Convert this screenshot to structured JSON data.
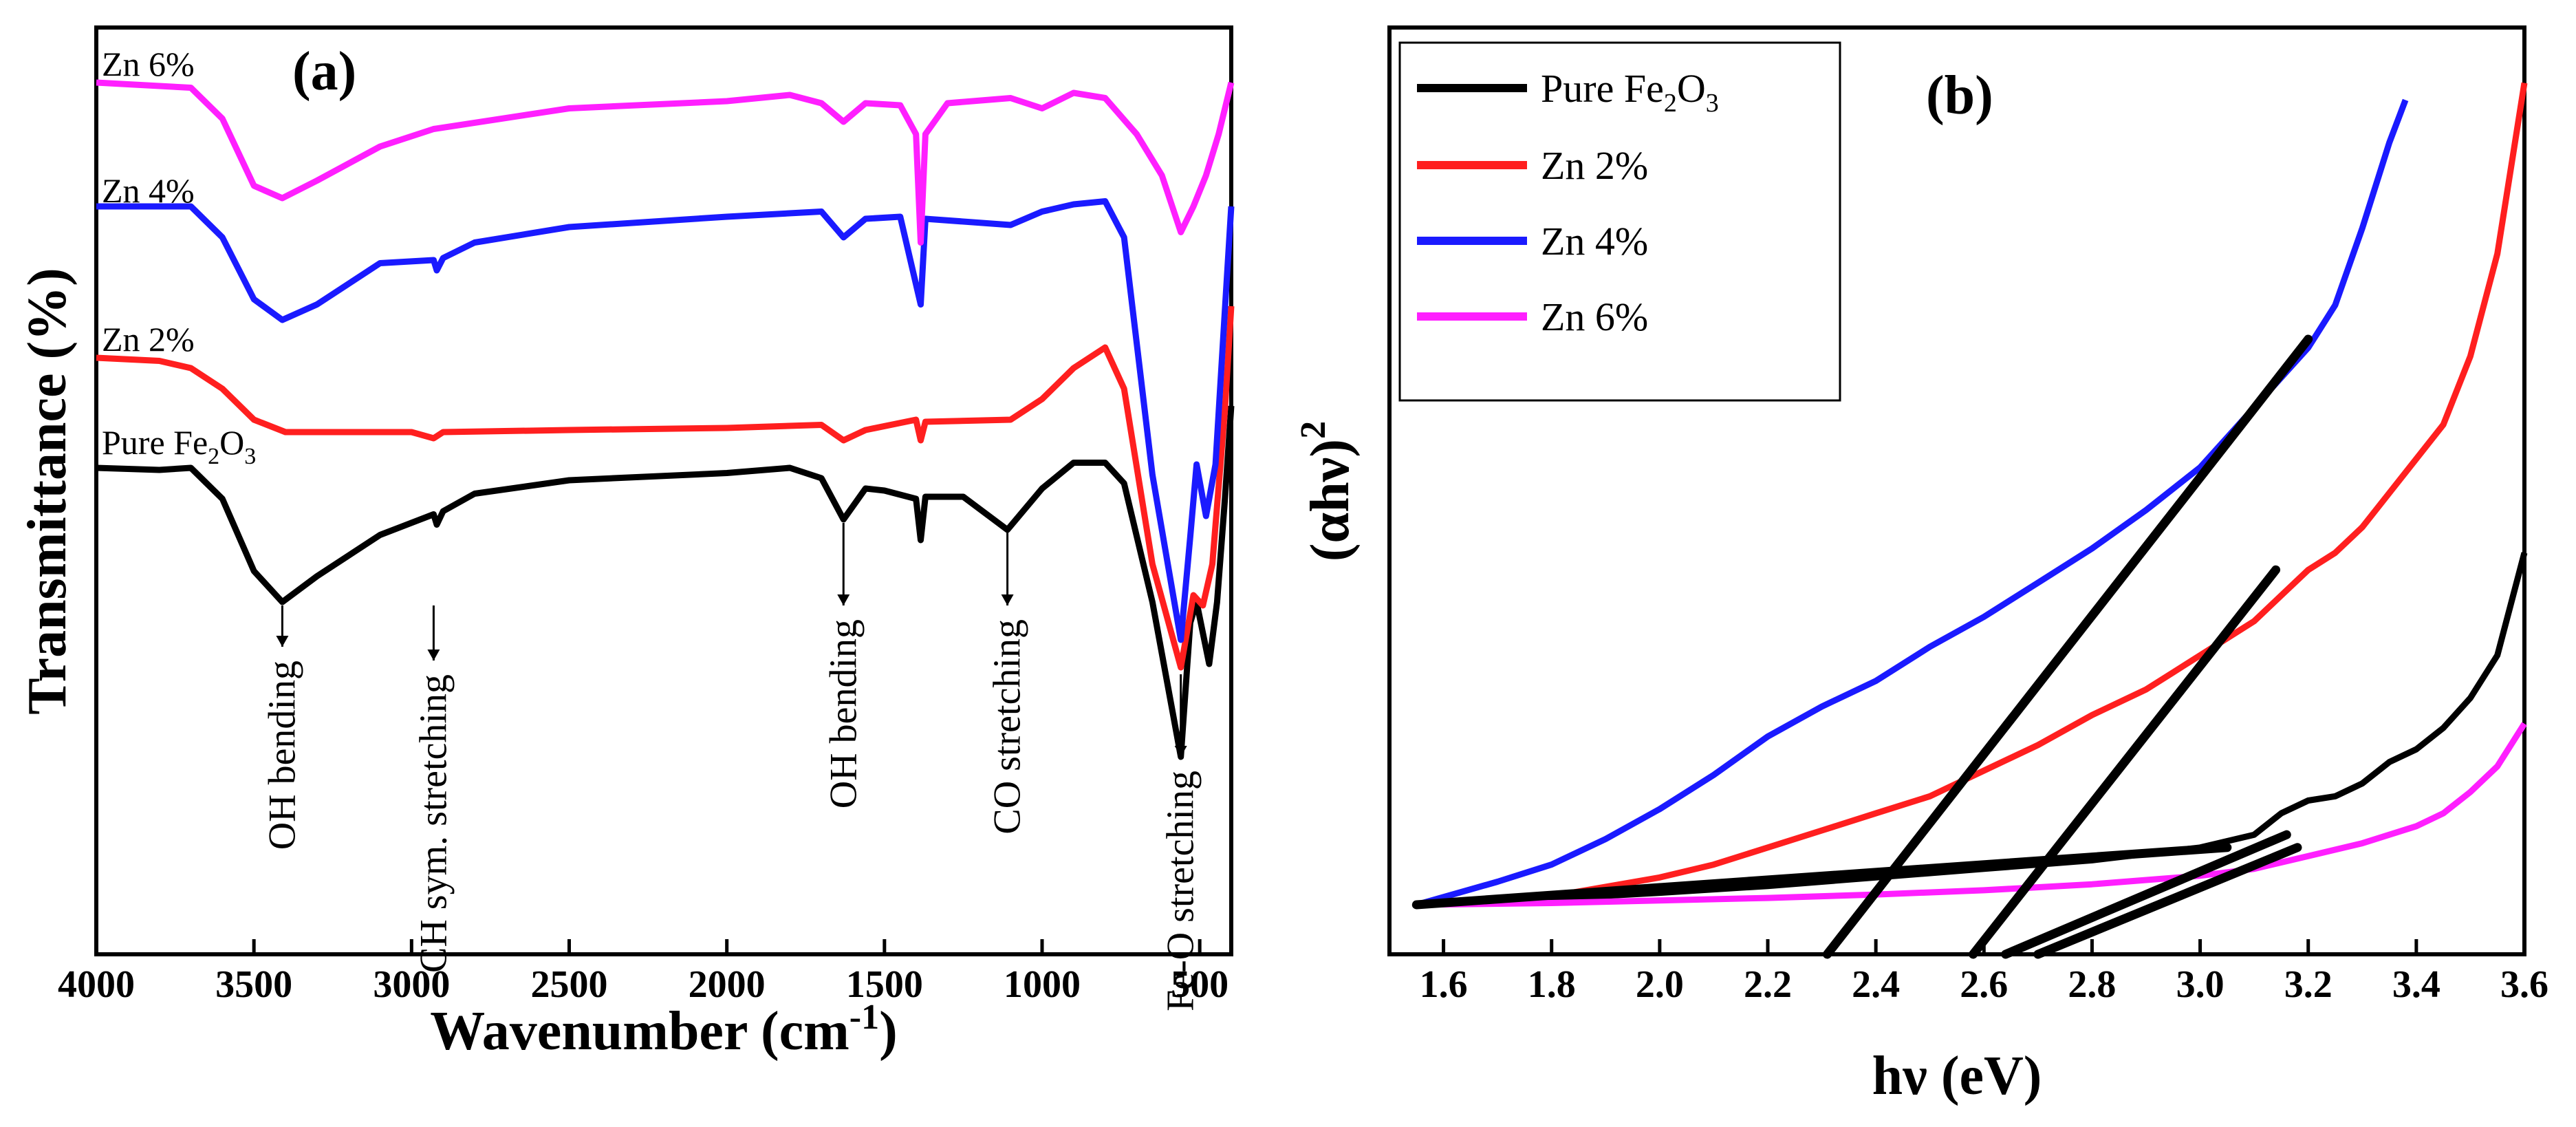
{
  "chart_data": [
    {
      "type": "line",
      "panel_label": "(a)",
      "xlabel": "Wavenumber (cm",
      "xlabel_sup": "-1",
      "xlabel_end": ")",
      "ylabel": "Transmittance (%)",
      "xlim": [
        4000,
        400
      ],
      "xticks": [
        4000,
        3500,
        3000,
        2500,
        2000,
        1500,
        1000,
        500
      ],
      "series": [
        {
          "name": "Pure Fe2O3",
          "label_main": "Pure Fe",
          "sub1": "2",
          "mid": "O",
          "sub2": "3",
          "color": "#000000",
          "points": [
            [
              4000,
              0.0
            ],
            [
              3800,
              -0.02
            ],
            [
              3700,
              0.0
            ],
            [
              3600,
              -0.3
            ],
            [
              3500,
              -1.0
            ],
            [
              3410,
              -1.3
            ],
            [
              3300,
              -1.05
            ],
            [
              3100,
              -0.65
            ],
            [
              2930,
              -0.45
            ],
            [
              2920,
              -0.55
            ],
            [
              2900,
              -0.42
            ],
            [
              2800,
              -0.25
            ],
            [
              2500,
              -0.12
            ],
            [
              2000,
              -0.05
            ],
            [
              1800,
              0.0
            ],
            [
              1700,
              -0.1
            ],
            [
              1630,
              -0.5
            ],
            [
              1560,
              -0.2
            ],
            [
              1500,
              -0.22
            ],
            [
              1400,
              -0.3
            ],
            [
              1385,
              -0.7
            ],
            [
              1370,
              -0.28
            ],
            [
              1250,
              -0.28
            ],
            [
              1110,
              -0.6
            ],
            [
              1000,
              -0.2
            ],
            [
              900,
              0.05
            ],
            [
              800,
              0.05
            ],
            [
              740,
              -0.15
            ],
            [
              650,
              -1.3
            ],
            [
              560,
              -2.8
            ],
            [
              530,
              -1.5
            ],
            [
              510,
              -1.3
            ],
            [
              470,
              -1.9
            ],
            [
              445,
              -1.3
            ],
            [
              420,
              -0.3
            ],
            [
              400,
              0.6
            ]
          ]
        },
        {
          "name": "Zn 2%",
          "label_main": "Zn 2%",
          "color": "#ff1f1f",
          "points": [
            [
              4000,
              0.0
            ],
            [
              3800,
              -0.03
            ],
            [
              3700,
              -0.1
            ],
            [
              3600,
              -0.3
            ],
            [
              3500,
              -0.6
            ],
            [
              3400,
              -0.72
            ],
            [
              3000,
              -0.72
            ],
            [
              2930,
              -0.78
            ],
            [
              2900,
              -0.72
            ],
            [
              2500,
              -0.7
            ],
            [
              2000,
              -0.68
            ],
            [
              1700,
              -0.65
            ],
            [
              1630,
              -0.8
            ],
            [
              1560,
              -0.7
            ],
            [
              1400,
              -0.6
            ],
            [
              1385,
              -0.8
            ],
            [
              1370,
              -0.62
            ],
            [
              1100,
              -0.6
            ],
            [
              1000,
              -0.4
            ],
            [
              900,
              -0.1
            ],
            [
              800,
              0.1
            ],
            [
              740,
              -0.3
            ],
            [
              650,
              -2.0
            ],
            [
              560,
              -3.0
            ],
            [
              520,
              -2.3
            ],
            [
              490,
              -2.4
            ],
            [
              460,
              -2.0
            ],
            [
              420,
              -0.5
            ],
            [
              400,
              0.5
            ]
          ]
        },
        {
          "name": "Zn 4%",
          "label_main": "Zn 4%",
          "color": "#1a1aff",
          "points": [
            [
              4000,
              0.0
            ],
            [
              3700,
              0.0
            ],
            [
              3600,
              -0.3
            ],
            [
              3500,
              -0.9
            ],
            [
              3410,
              -1.1
            ],
            [
              3300,
              -0.95
            ],
            [
              3100,
              -0.55
            ],
            [
              2930,
              -0.52
            ],
            [
              2920,
              -0.62
            ],
            [
              2900,
              -0.5
            ],
            [
              2800,
              -0.35
            ],
            [
              2500,
              -0.2
            ],
            [
              2000,
              -0.1
            ],
            [
              1700,
              -0.05
            ],
            [
              1630,
              -0.3
            ],
            [
              1560,
              -0.12
            ],
            [
              1450,
              -0.1
            ],
            [
              1385,
              -0.95
            ],
            [
              1370,
              -0.12
            ],
            [
              1100,
              -0.18
            ],
            [
              1000,
              -0.05
            ],
            [
              900,
              0.02
            ],
            [
              800,
              0.05
            ],
            [
              740,
              -0.3
            ],
            [
              650,
              -2.6
            ],
            [
              560,
              -4.2
            ],
            [
              530,
              -3.2
            ],
            [
              510,
              -2.5
            ],
            [
              480,
              -3.0
            ],
            [
              450,
              -2.5
            ],
            [
              420,
              -1.0
            ],
            [
              400,
              0.0
            ]
          ]
        },
        {
          "name": "Zn 6%",
          "label_main": "Zn 6%",
          "color": "#ff1fff",
          "points": [
            [
              4000,
              0.0
            ],
            [
              3700,
              -0.05
            ],
            [
              3600,
              -0.35
            ],
            [
              3500,
              -1.0
            ],
            [
              3410,
              -1.12
            ],
            [
              3300,
              -0.95
            ],
            [
              3100,
              -0.62
            ],
            [
              2930,
              -0.45
            ],
            [
              2500,
              -0.25
            ],
            [
              2000,
              -0.18
            ],
            [
              1800,
              -0.12
            ],
            [
              1700,
              -0.2
            ],
            [
              1630,
              -0.38
            ],
            [
              1560,
              -0.2
            ],
            [
              1450,
              -0.22
            ],
            [
              1400,
              -0.5
            ],
            [
              1385,
              -1.55
            ],
            [
              1370,
              -0.5
            ],
            [
              1300,
              -0.2
            ],
            [
              1100,
              -0.15
            ],
            [
              1000,
              -0.25
            ],
            [
              900,
              -0.1
            ],
            [
              800,
              -0.15
            ],
            [
              700,
              -0.5
            ],
            [
              620,
              -0.9
            ],
            [
              560,
              -1.45
            ],
            [
              520,
              -1.2
            ],
            [
              480,
              -0.9
            ],
            [
              440,
              -0.5
            ],
            [
              400,
              0.0
            ]
          ]
        }
      ],
      "annotations": [
        {
          "text": "OH bending",
          "x": 3410
        },
        {
          "text": "CH sym. stretching",
          "x": 2930
        },
        {
          "text": "OH bending",
          "x": 1630
        },
        {
          "text": "CO stretching",
          "x": 1110
        },
        {
          "text": "Fe-O stretching",
          "x": 560
        }
      ]
    },
    {
      "type": "line",
      "panel_label": "(b)",
      "xlabel": "hν (eV)",
      "ylabel_main": "(αhν)",
      "ylabel_sup": "2",
      "xlim": [
        1.5,
        3.6
      ],
      "ylim": [
        0,
        1
      ],
      "xticks": [
        "1.6",
        "1.8",
        "2.0",
        "2.2",
        "2.4",
        "2.6",
        "2.8",
        "3.0",
        "3.2",
        "3.4",
        "3.6"
      ],
      "legend": [
        {
          "label_main": "Pure Fe",
          "sub1": "2",
          "mid": "O",
          "sub2": "3",
          "color": "#000000"
        },
        {
          "label_main": "Zn 2%",
          "color": "#ff1f1f"
        },
        {
          "label_main": "Zn 4%",
          "color": "#1a1aff"
        },
        {
          "label_main": "Zn 6%",
          "color": "#ff1fff"
        }
      ],
      "series": [
        {
          "name": "Pure Fe2O3",
          "color": "#000000",
          "points": [
            [
              1.55,
              0.058
            ],
            [
              1.8,
              0.065
            ],
            [
              2.0,
              0.072
            ],
            [
              2.2,
              0.08
            ],
            [
              2.4,
              0.09
            ],
            [
              2.6,
              0.1
            ],
            [
              2.8,
              0.11
            ],
            [
              3.0,
              0.125
            ],
            [
              3.1,
              0.14
            ],
            [
              3.15,
              0.165
            ],
            [
              3.2,
              0.18
            ],
            [
              3.25,
              0.185
            ],
            [
              3.3,
              0.2
            ],
            [
              3.35,
              0.225
            ],
            [
              3.4,
              0.24
            ],
            [
              3.45,
              0.265
            ],
            [
              3.5,
              0.3
            ],
            [
              3.55,
              0.35
            ],
            [
              3.6,
              0.47
            ]
          ]
        },
        {
          "name": "Zn 2%",
          "color": "#ff1f1f",
          "points": [
            [
              1.55,
              0.058
            ],
            [
              1.8,
              0.068
            ],
            [
              2.0,
              0.09
            ],
            [
              2.1,
              0.105
            ],
            [
              2.2,
              0.125
            ],
            [
              2.3,
              0.145
            ],
            [
              2.4,
              0.165
            ],
            [
              2.5,
              0.185
            ],
            [
              2.6,
              0.215
            ],
            [
              2.7,
              0.245
            ],
            [
              2.8,
              0.28
            ],
            [
              2.9,
              0.31
            ],
            [
              2.95,
              0.33
            ],
            [
              3.0,
              0.35
            ],
            [
              3.1,
              0.39
            ],
            [
              3.15,
              0.42
            ],
            [
              3.2,
              0.45
            ],
            [
              3.25,
              0.47
            ],
            [
              3.3,
              0.5
            ],
            [
              3.35,
              0.54
            ],
            [
              3.4,
              0.58
            ],
            [
              3.45,
              0.62
            ],
            [
              3.5,
              0.7
            ],
            [
              3.55,
              0.82
            ],
            [
              3.6,
              1.02
            ]
          ]
        },
        {
          "name": "Zn 4%",
          "color": "#1a1aff",
          "points": [
            [
              1.55,
              0.058
            ],
            [
              1.7,
              0.085
            ],
            [
              1.8,
              0.105
            ],
            [
              1.9,
              0.135
            ],
            [
              2.0,
              0.17
            ],
            [
              2.1,
              0.21
            ],
            [
              2.2,
              0.255
            ],
            [
              2.3,
              0.29
            ],
            [
              2.4,
              0.32
            ],
            [
              2.5,
              0.36
            ],
            [
              2.6,
              0.395
            ],
            [
              2.7,
              0.435
            ],
            [
              2.8,
              0.475
            ],
            [
              2.9,
              0.52
            ],
            [
              3.0,
              0.57
            ],
            [
              3.1,
              0.64
            ],
            [
              3.2,
              0.71
            ],
            [
              3.25,
              0.76
            ],
            [
              3.3,
              0.85
            ],
            [
              3.35,
              0.95
            ],
            [
              3.38,
              1.0
            ]
          ]
        },
        {
          "name": "Zn 6%",
          "color": "#ff1fff",
          "points": [
            [
              1.55,
              0.058
            ],
            [
              1.8,
              0.06
            ],
            [
              2.0,
              0.063
            ],
            [
              2.2,
              0.066
            ],
            [
              2.4,
              0.07
            ],
            [
              2.6,
              0.075
            ],
            [
              2.8,
              0.082
            ],
            [
              3.0,
              0.092
            ],
            [
              3.1,
              0.1
            ],
            [
              3.2,
              0.115
            ],
            [
              3.3,
              0.13
            ],
            [
              3.4,
              0.15
            ],
            [
              3.45,
              0.165
            ],
            [
              3.5,
              0.19
            ],
            [
              3.55,
              0.22
            ],
            [
              3.6,
              0.27
            ]
          ]
        }
      ],
      "fit_lines": [
        {
          "points": [
            [
              2.31,
              0.0
            ],
            [
              3.2,
              0.72
            ]
          ]
        },
        {
          "points": [
            [
              2.58,
              0.0
            ],
            [
              3.14,
              0.45
            ]
          ]
        },
        {
          "points": [
            [
              2.64,
              0.0
            ],
            [
              3.16,
              0.14
            ]
          ]
        },
        {
          "points": [
            [
              2.7,
              0.0
            ],
            [
              3.18,
              0.125
            ]
          ]
        },
        {
          "points": [
            [
              1.55,
              0.058
            ],
            [
              3.05,
              0.125
            ]
          ]
        }
      ]
    }
  ]
}
